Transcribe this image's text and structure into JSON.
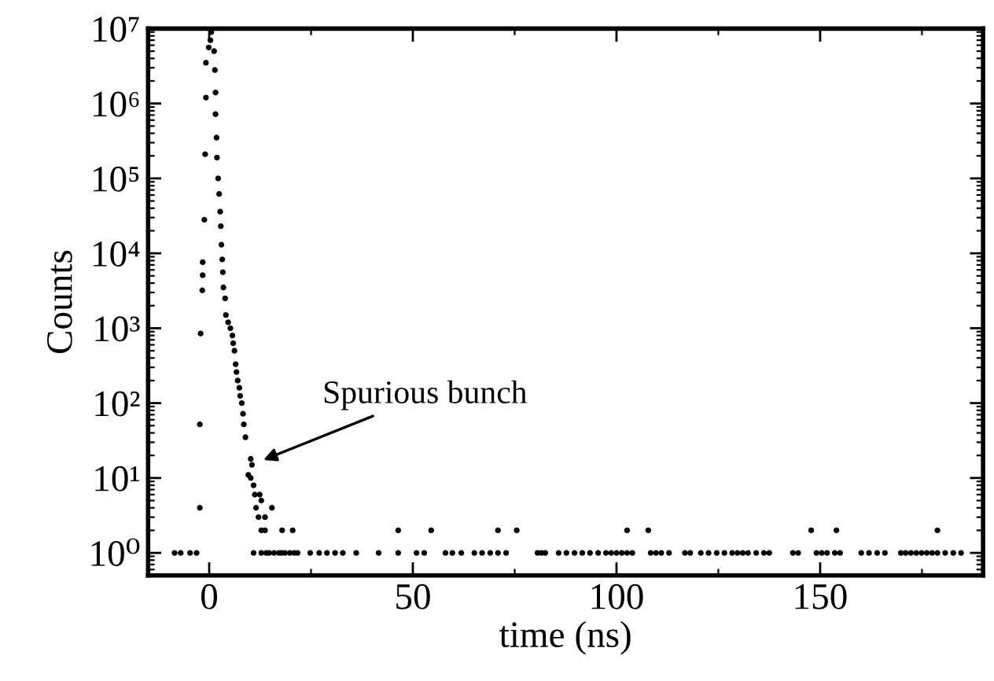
{
  "chart_data": {
    "type": "scatter",
    "xlabel": "time (ns)",
    "ylabel": "Counts",
    "log": "y",
    "grid": false,
    "marker": "circle",
    "xlim": [
      -15,
      190
    ],
    "xticks": [
      0,
      50,
      100,
      150
    ],
    "ylim": [
      0.5,
      10000000
    ],
    "yticks": [
      {
        "value": 1,
        "label": "10⁰"
      },
      {
        "value": 10,
        "label": "10¹"
      },
      {
        "value": 100,
        "label": "10²"
      },
      {
        "value": 1000,
        "label": "10³"
      },
      {
        "value": 10000,
        "label": "10⁴"
      },
      {
        "value": 100000,
        "label": "10⁵"
      },
      {
        "value": 1000000,
        "label": "10⁶"
      },
      {
        "value": 10000000,
        "label": "10⁷"
      }
    ],
    "annotations": [
      {
        "text": "Spurious bunch",
        "x": 12.8,
        "y": 17
      }
    ],
    "series": [
      {
        "color": "#000000",
        "x": [
          0.5,
          0.3,
          -0.1,
          1.2,
          -0.8,
          1.4,
          -0.8,
          1.55,
          1.55,
          1.8
        ],
        "values": [
          9000000,
          7000000,
          5600000,
          5000000,
          3500000,
          2800000,
          1200000,
          1400000,
          720000,
          350000
        ]
      },
      {
        "color": "#000000",
        "x": [
          -1.0,
          1.9,
          2.2,
          2.45,
          2.7,
          -1.2,
          2.85,
          3.0,
          3.2,
          -1.6
        ],
        "values": [
          210000,
          190000,
          100000,
          62000,
          36000,
          28000,
          23000,
          13000,
          8300,
          7600
        ]
      },
      {
        "color": "#000000",
        "x": [
          -1.6,
          -1.7,
          3.35,
          3.5,
          3.9,
          4.1,
          4.65,
          5.2,
          5.7,
          5.9
        ],
        "values": [
          5100,
          3200,
          5600,
          3500,
          2500,
          1500,
          1200,
          1000,
          800,
          630
        ]
      },
      {
        "color": "#000000",
        "x": [
          6.2,
          6.5,
          6.7,
          7.0,
          7.4,
          7.6,
          8.0,
          8.3,
          8.5,
          8.9
        ],
        "values": [
          500,
          330,
          260,
          200,
          160,
          125,
          100,
          72,
          52,
          35
        ]
      },
      {
        "color": "#000000",
        "x": [
          -2.1,
          -2.3,
          -2.3,
          10.2,
          10.5,
          9.6,
          10.2,
          10.9,
          11.2,
          12.4
        ],
        "values": [
          850,
          52,
          4,
          18,
          15,
          11,
          10,
          8,
          6,
          6
        ]
      },
      {
        "color": "#000000",
        "x": [
          12.8,
          11.5,
          12.1,
          13.7,
          15.4
        ],
        "values": [
          5,
          4,
          3,
          3,
          4
        ]
      },
      {
        "color": "#000000",
        "x": [
          12.8,
          13.7,
          17.9,
          20.5,
          46.4,
          54.5,
          70.9,
          75.5,
          102.6,
          107.8,
          147.8,
          154.0,
          178.8
        ],
        "values": [
          2,
          2,
          2,
          2,
          2,
          2,
          2,
          2,
          2,
          2,
          2,
          2,
          2
        ]
      },
      {
        "color": "#000000",
        "x": [
          -8.5,
          -7.0,
          -4.7,
          -3.1,
          10.9,
          12.8,
          14.0,
          14.7,
          15.9,
          17.1
        ],
        "values": [
          1,
          1,
          1,
          1,
          1,
          1,
          1,
          1,
          1,
          1
        ]
      },
      {
        "color": "#000000",
        "x": [
          17.8,
          18.6,
          19.8,
          20.9,
          21.7,
          24.8,
          27.0,
          28.9,
          30.9,
          32.8
        ],
        "values": [
          1,
          1,
          1,
          1,
          1,
          1,
          1,
          1,
          1,
          1
        ]
      },
      {
        "color": "#000000",
        "x": [
          36.1,
          41.6,
          46.4,
          50.9,
          52.8,
          58.0,
          59.7,
          61.9,
          65.1,
          67.0
        ],
        "values": [
          1,
          1,
          1,
          1,
          1,
          1,
          1,
          1,
          1,
          1
        ]
      },
      {
        "color": "#000000",
        "x": [
          69.0,
          70.9,
          72.9,
          80.6,
          81.6,
          82.5,
          85.8,
          87.7,
          89.7,
          91.6
        ],
        "values": [
          1,
          1,
          1,
          1,
          1,
          1,
          1,
          1,
          1,
          1
        ]
      },
      {
        "color": "#000000",
        "x": [
          93.5,
          95.5,
          97.4,
          98.7,
          100.0,
          101.3,
          102.6,
          103.9,
          108.4,
          109.7
        ],
        "values": [
          1,
          1,
          1,
          1,
          1,
          1,
          1,
          1,
          1,
          1
        ]
      },
      {
        "color": "#000000",
        "x": [
          111.0,
          112.9,
          116.8,
          118.1,
          120.7,
          122.6,
          124.6,
          126.5,
          128.4,
          129.7
        ],
        "values": [
          1,
          1,
          1,
          1,
          1,
          1,
          1,
          1,
          1,
          1
        ]
      },
      {
        "color": "#000000",
        "x": [
          131.0,
          132.3,
          134.3,
          136.2,
          137.5,
          143.3,
          144.6,
          149.1,
          150.4,
          151.7
        ],
        "values": [
          1,
          1,
          1,
          1,
          1,
          1,
          1,
          1,
          1,
          1
        ]
      },
      {
        "color": "#000000",
        "x": [
          153.6,
          154.9,
          160.1,
          162.0,
          164.0,
          165.9,
          169.8,
          171.0,
          172.3,
          173.6
        ],
        "values": [
          1,
          1,
          1,
          1,
          1,
          1,
          1,
          1,
          1,
          1
        ]
      },
      {
        "color": "#000000",
        "x": [
          174.9,
          176.2,
          177.5,
          178.8,
          180.7,
          182.7,
          184.6
        ],
        "values": [
          1,
          1,
          1,
          1,
          1,
          1,
          1
        ]
      }
    ]
  }
}
